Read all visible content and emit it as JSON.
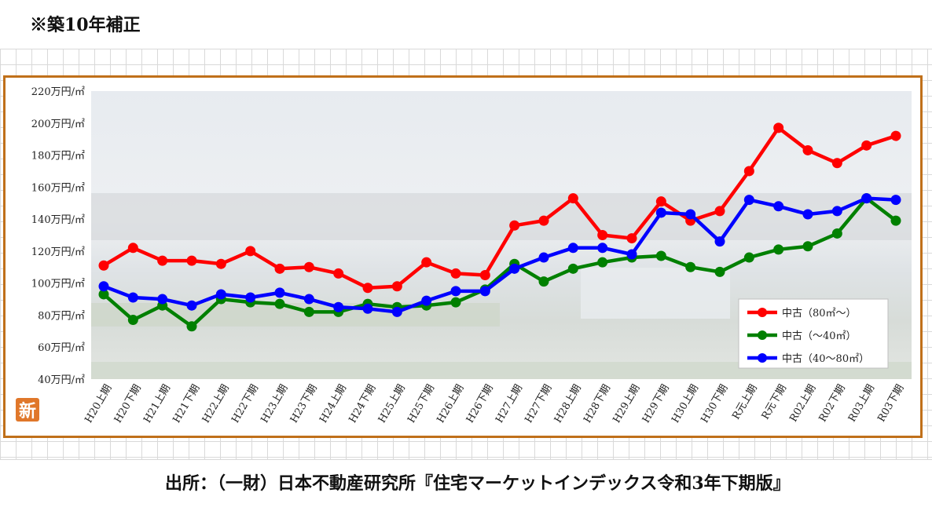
{
  "note": "※築10年補正",
  "source": "出所：（一財）日本不動産研究所『住宅マーケットインデックス令和3年下期版』",
  "stamp_label": "新",
  "chart_data": {
    "type": "line",
    "categories": [
      "H20上期",
      "H20下期",
      "H21上期",
      "H21下期",
      "H22上期",
      "H22下期",
      "H23上期",
      "H23下期",
      "H24上期",
      "H24下期",
      "H25上期",
      "H25下期",
      "H26上期",
      "H26下期",
      "H27上期",
      "H27下期",
      "H28上期",
      "H28下期",
      "H29上期",
      "H29下期",
      "H30上期",
      "H30下期",
      "R元上期",
      "R元下期",
      "R02上期",
      "R02下期",
      "R03上期",
      "R03下期"
    ],
    "ylim": [
      40,
      220
    ],
    "yticks": [
      40,
      60,
      80,
      100,
      120,
      140,
      160,
      180,
      200,
      220
    ],
    "ytick_suffix": "万円/㎡",
    "legend_position": "bottom-right",
    "series": [
      {
        "name": "中古（80㎡～）",
        "color": "#ff0000",
        "values": [
          111,
          122,
          114,
          114,
          112,
          120,
          109,
          110,
          106,
          97,
          98,
          113,
          106,
          105,
          136,
          139,
          153,
          130,
          128,
          151,
          139,
          145,
          170,
          197,
          183,
          175,
          186,
          192
        ]
      },
      {
        "name": "中古（～40㎡）",
        "color": "#008000",
        "values": [
          93,
          77,
          86,
          73,
          90,
          88,
          87,
          82,
          82,
          87,
          85,
          86,
          88,
          96,
          112,
          101,
          109,
          113,
          116,
          117,
          110,
          107,
          116,
          121,
          123,
          131,
          153,
          139
        ]
      },
      {
        "name": "中古（40～80㎡）",
        "color": "#0000ff",
        "values": [
          98,
          91,
          90,
          86,
          93,
          91,
          94,
          90,
          85,
          84,
          82,
          89,
          95,
          95,
          109,
          116,
          122,
          122,
          118,
          144,
          143,
          126,
          152,
          148,
          143,
          145,
          153,
          152
        ]
      }
    ]
  }
}
